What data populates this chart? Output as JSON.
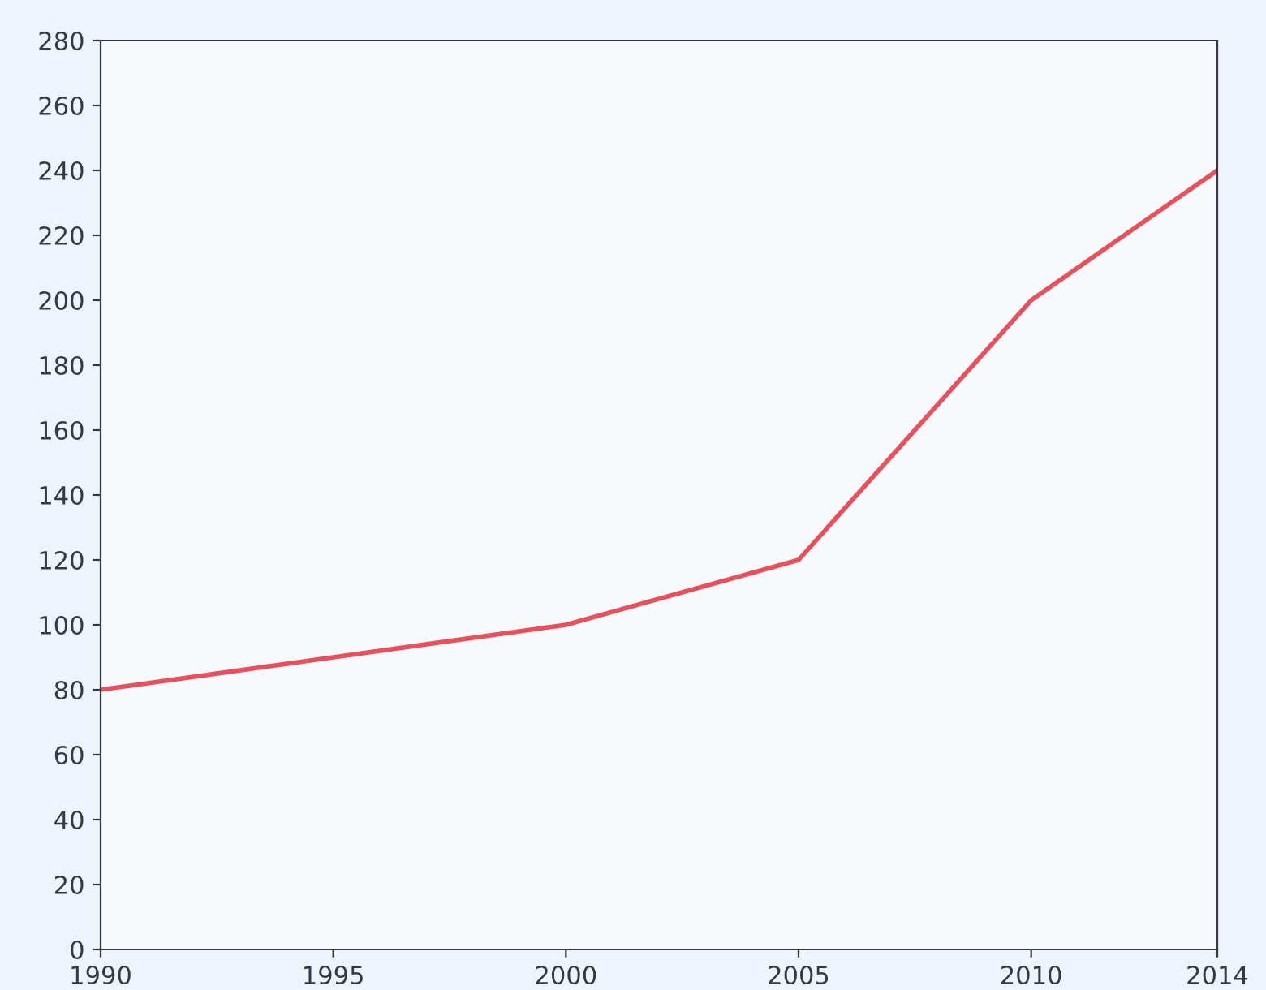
{
  "chart_data": {
    "type": "line",
    "x": [
      1990,
      1995,
      2000,
      2005,
      2010,
      2014
    ],
    "series": [
      {
        "color": "#e8505b",
        "values": [
          80,
          90,
          100,
          120,
          200,
          240
        ]
      }
    ],
    "xlim": [
      1990,
      2014
    ],
    "xticks": [
      1990,
      1995,
      2000,
      2005,
      2010,
      2014
    ],
    "ylim": [
      0,
      280
    ],
    "yticks": [
      0,
      20,
      40,
      60,
      80,
      100,
      120,
      140,
      160,
      180,
      200,
      220,
      240,
      260,
      280
    ],
    "grid": false,
    "legend": false,
    "marker": "none",
    "line_style": "solid"
  }
}
